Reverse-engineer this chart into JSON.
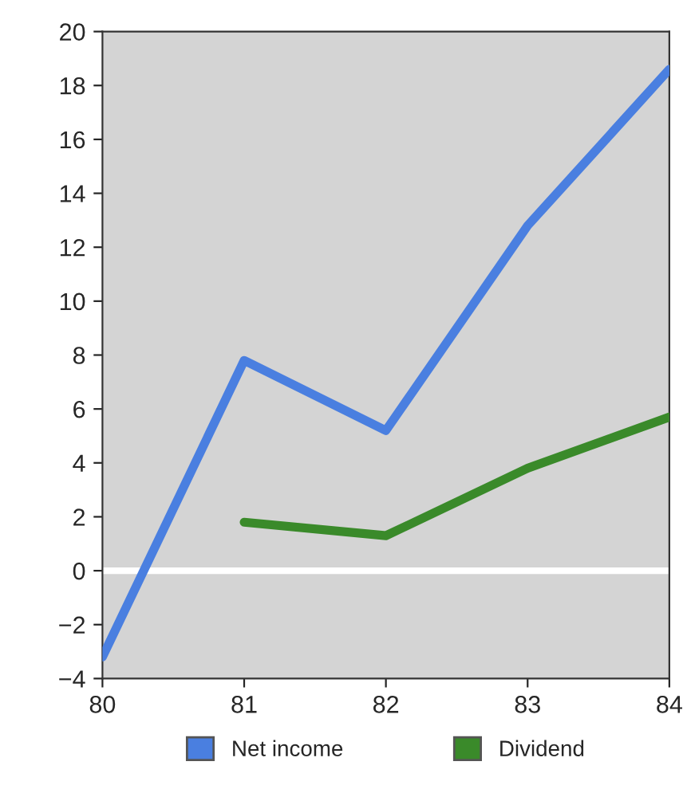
{
  "chart_data": {
    "type": "line",
    "x": [
      80,
      81,
      82,
      83,
      84
    ],
    "series": [
      {
        "name": "Net income",
        "color": "#4a7fe0",
        "values": [
          -3.2,
          7.8,
          5.2,
          12.8,
          18.6
        ]
      },
      {
        "name": "Dividend",
        "color": "#3a8a2a",
        "x": [
          81,
          82,
          83,
          84
        ],
        "values": [
          1.8,
          1.3,
          3.8,
          5.7
        ]
      }
    ],
    "xlim": [
      80,
      84
    ],
    "xticks": [
      80,
      81,
      82,
      83,
      84
    ],
    "ylim": [
      -4,
      20
    ],
    "yticks": [
      {
        "value": -4,
        "label": "−4"
      },
      {
        "value": -2,
        "label": "−2"
      },
      0,
      2,
      4,
      6,
      8,
      10,
      12,
      14,
      16,
      18,
      20
    ],
    "ref_lines": [
      {
        "axis": "y",
        "value": 0,
        "color": "#ffffff"
      }
    ],
    "grid": false,
    "legend": "bottom",
    "marker": "none",
    "line_style": "solid"
  }
}
